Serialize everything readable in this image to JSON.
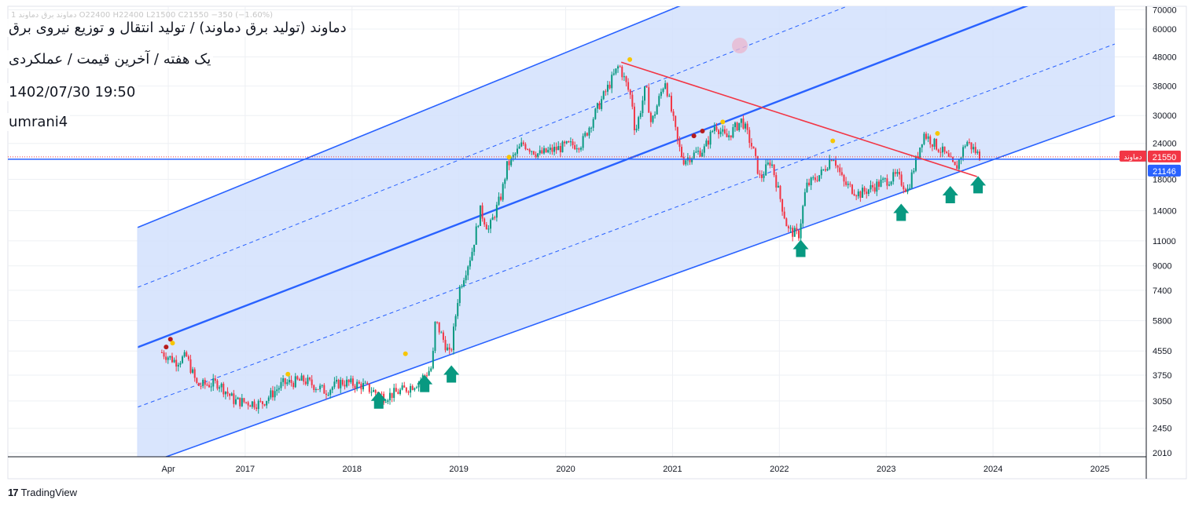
{
  "header": {
    "ohlc_text": "1 دماوند برق دماوند  O22400  H22400  L21500  C21550  −350 (−1.60%)",
    "title": "دماوند (تولید برق دماوند) / تولید انتقال و توزیع نیروی برق",
    "subtitle": "یک هفته / آخرین قیمت / عملکردی",
    "datetime": "1402/07/30 19:50",
    "author": "umrani4"
  },
  "branding": {
    "logo": "17",
    "name": "TradingView"
  },
  "colors": {
    "up": "#089981",
    "down": "#f23645",
    "channel_line": "#2962ff",
    "channel_fill": "#d2e0fd",
    "trend_line": "#f23645",
    "arrow": "#089981",
    "price_line": "#2962ff"
  },
  "chart_data": {
    "type": "candlestick",
    "symbol": "دماوند",
    "timeframe": "1W",
    "scale": "log",
    "x_tick_labels": [
      "Apr",
      "2017",
      "2018",
      "2019",
      "2020",
      "2021",
      "2022",
      "2023",
      "2024",
      "2025"
    ],
    "y_tick_labels": [
      "70000",
      "60000",
      "48000",
      "38000",
      "30000",
      "24000",
      "18000",
      "14000",
      "11000",
      "9000",
      "7400",
      "5800",
      "4550",
      "3750",
      "3050",
      "2450",
      "2010"
    ],
    "ylim": [
      1950,
      72000
    ],
    "last_price": {
      "label": "دماوند",
      "value": "21550"
    },
    "horizontal_line": {
      "value": "21146"
    },
    "price_path": [
      [
        "2016.22",
        4500
      ],
      [
        "2016.35",
        4180
      ],
      [
        "2016.45",
        4350
      ],
      [
        "2016.55",
        3450
      ],
      [
        "2016.75",
        3520
      ],
      [
        "2016.9",
        3050
      ],
      [
        "2017.15",
        2980
      ],
      [
        "2017.35",
        3500
      ],
      [
        "2017.55",
        3600
      ],
      [
        "2017.75",
        3300
      ],
      [
        "2017.9",
        3550
      ],
      [
        "2018.1",
        3450
      ],
      [
        "2018.3",
        3150
      ],
      [
        "2018.5",
        3350
      ],
      [
        "2018.62",
        3550
      ],
      [
        "2018.75",
        4000
      ],
      [
        "2018.78",
        5800
      ],
      [
        "2018.92",
        4350
      ],
      [
        "2019.0",
        7400
      ],
      [
        "2019.12",
        10000
      ],
      [
        "2019.2",
        14000
      ],
      [
        "2019.28",
        12000
      ],
      [
        "2019.4",
        16000
      ],
      [
        "2019.45",
        20000
      ],
      [
        "2019.6",
        24000
      ],
      [
        "2019.75",
        22000
      ],
      [
        "2020.0",
        23500
      ],
      [
        "2020.15",
        24000
      ],
      [
        "2020.3",
        32000
      ],
      [
        "2020.5",
        45000
      ],
      [
        "2020.62",
        34000
      ],
      [
        "2020.65",
        26000
      ],
      [
        "2020.75",
        38000
      ],
      [
        "2020.8",
        28000
      ],
      [
        "2020.93",
        40000
      ],
      [
        "2021.05",
        24000
      ],
      [
        "2021.1",
        21000
      ],
      [
        "2021.3",
        23000
      ],
      [
        "2021.4",
        28000
      ],
      [
        "2021.5",
        25000
      ],
      [
        "2021.65",
        29000
      ],
      [
        "2021.75",
        23000
      ],
      [
        "2021.82",
        18000
      ],
      [
        "2021.92",
        21000
      ],
      [
        "2022.08",
        12000
      ],
      [
        "2022.18",
        11500
      ],
      [
        "2022.25",
        17000
      ],
      [
        "2022.4",
        19000
      ],
      [
        "2022.5",
        22000
      ],
      [
        "2022.6",
        17500
      ],
      [
        "2022.75",
        16000
      ],
      [
        "2022.95",
        17500
      ],
      [
        "2023.1",
        18500
      ],
      [
        "2023.2",
        16500
      ],
      [
        "2023.35",
        26000
      ],
      [
        "2023.55",
        22000
      ],
      [
        "2023.65",
        19500
      ],
      [
        "2023.75",
        24500
      ],
      [
        "2023.88",
        21550
      ]
    ],
    "annotations": {
      "up_arrows_x": [
        "2018.25",
        "2018.68",
        "2018.93",
        "2022.2",
        "2023.14",
        "2023.6",
        "2023.86"
      ],
      "channel_mid_start": [
        "2016.0",
        4700
      ],
      "channel_mid_end": [
        "2025.15",
        95000
      ],
      "channel_lower_start": [
        "2016.0",
        1800
      ],
      "channel_lower_end": [
        "2025.15",
        30000
      ],
      "trendline_start": [
        "2020.52",
        46000
      ],
      "trendline_end": [
        "2023.85",
        18400
      ]
    }
  }
}
